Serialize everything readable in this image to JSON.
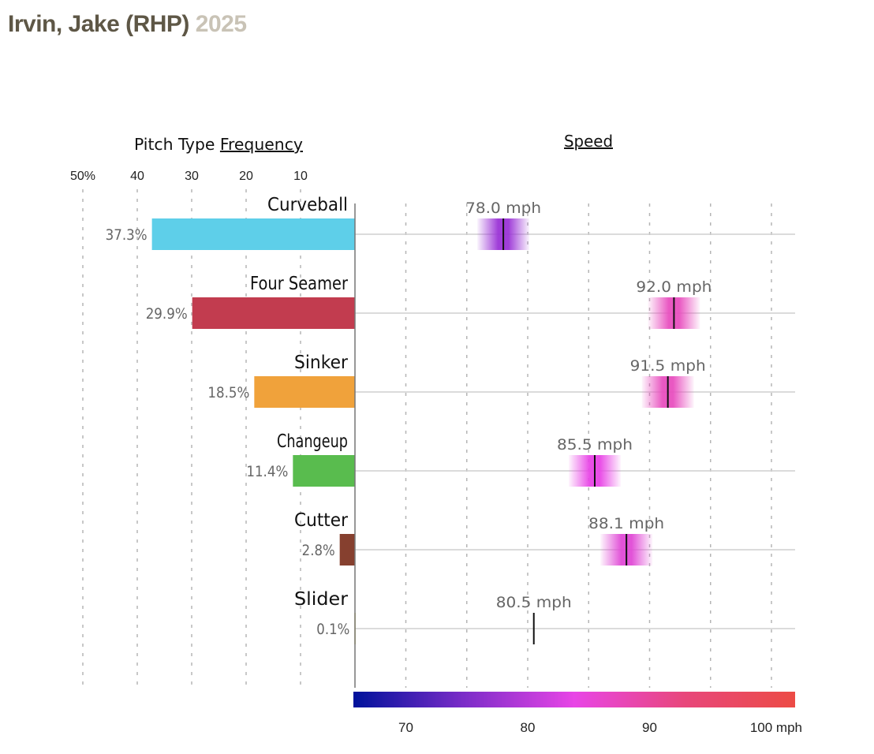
{
  "header": {
    "player": "Irvin, Jake (RHP)",
    "year": "2025"
  },
  "chart_data": {
    "type": "bar",
    "title": "Irvin, Jake (RHP) 2025",
    "left_panel": {
      "title_prefix": "Pitch Type ",
      "title_link": "Frequency",
      "tick_labels": [
        "50%",
        "40",
        "30",
        "20",
        "10"
      ],
      "tick_values": [
        50,
        40,
        30,
        20,
        10
      ],
      "xlim": [
        0,
        50
      ]
    },
    "right_panel": {
      "title": "Speed",
      "xlim": [
        65.8,
        102
      ],
      "grid_values": [
        70,
        75,
        80,
        85,
        90,
        95,
        100
      ],
      "colorbar_tick_labels": [
        "70",
        "80",
        "90",
        "100 mph"
      ],
      "colorbar_tick_values": [
        70,
        80,
        90,
        100
      ],
      "colorbar_colors": [
        "#00129b",
        "#7b2cc8",
        "#e845e6",
        "#e8477b",
        "#ec4b45"
      ],
      "unit": "mph"
    },
    "categories": [
      "Curveball",
      "Four Seamer",
      "Sinker",
      "Changeup",
      "Cutter",
      "Slider"
    ],
    "series": [
      {
        "name": "Frequency",
        "values": [
          37.3,
          29.9,
          18.5,
          11.4,
          2.8,
          0.1
        ],
        "labels": [
          "37.3%",
          "29.9%",
          "18.5%",
          "11.4%",
          "2.8%",
          "0.1%"
        ],
        "colors": [
          "#5ecfe9",
          "#c23c4f",
          "#f0a23b",
          "#59bc4e",
          "#86402f",
          "#c9b94a"
        ]
      },
      {
        "name": "Speed",
        "values": [
          78.0,
          92.0,
          91.5,
          85.5,
          88.1,
          80.5
        ],
        "labels": [
          "78.0 mph",
          "92.0 mph",
          "91.5 mph",
          "85.5 mph",
          "88.1 mph",
          "80.5 mph"
        ],
        "band_colors": [
          "#9b34d6",
          "#e84fbf",
          "#e84fbf",
          "#e845e6",
          "#e04ad6",
          null
        ]
      }
    ]
  }
}
